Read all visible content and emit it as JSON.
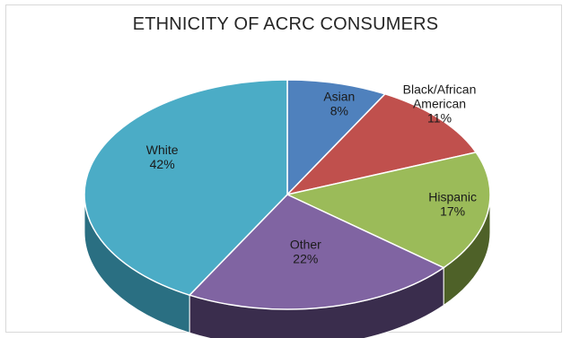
{
  "chart_data": {
    "type": "pie",
    "title": "ETHNICITY OF ACRC CONSUMERS",
    "slices": [
      {
        "name": "Asian",
        "value": 8,
        "label": "8%",
        "color": "#4f81bd",
        "side_color": "#2f4f7a"
      },
      {
        "name": "Black/African American",
        "value": 11,
        "label": "11%",
        "color": "#c0504d",
        "side_color": "#7a2d2b"
      },
      {
        "name": "Hispanic",
        "value": 17,
        "label": "17%",
        "color": "#9bbb59",
        "side_color": "#4e6128"
      },
      {
        "name": "Other",
        "value": 22,
        "label": "22%",
        "color": "#8064a2",
        "side_color": "#3a2d4d"
      },
      {
        "name": "White",
        "value": 42,
        "label": "42%",
        "color": "#4bacc6",
        "side_color": "#2a6f82"
      }
    ],
    "legend": "none",
    "style": "3d"
  }
}
